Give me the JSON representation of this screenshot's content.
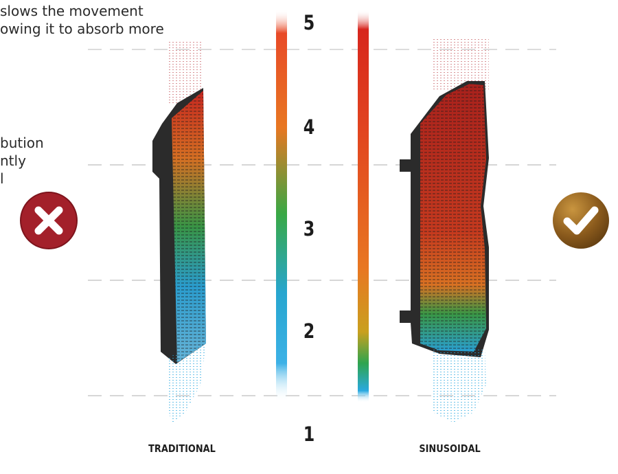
{
  "intro_text": {
    "top_lines": "slows the movement\nowing it to absorb more",
    "middle_lines": "bution\nntly\nl"
  },
  "scale_levels": [
    "5",
    "4",
    "3",
    "2",
    "1"
  ],
  "panels": {
    "traditional": {
      "label": "TRADITIONAL",
      "verdict": "negative",
      "icon": "cross-icon"
    },
    "sinusoidal": {
      "label": "SINUSOIDAL",
      "verdict": "positive",
      "icon": "check-icon"
    }
  },
  "colors": {
    "cold": "#2aa9e0",
    "mid": "#2ea44f",
    "warm": "#e87722",
    "hot": "#d7261e",
    "pad": "#2b2b2b",
    "cross_badge": "#a3202a",
    "check_badge": "#8a5a1c",
    "guide_line": "#c8c8c8"
  }
}
